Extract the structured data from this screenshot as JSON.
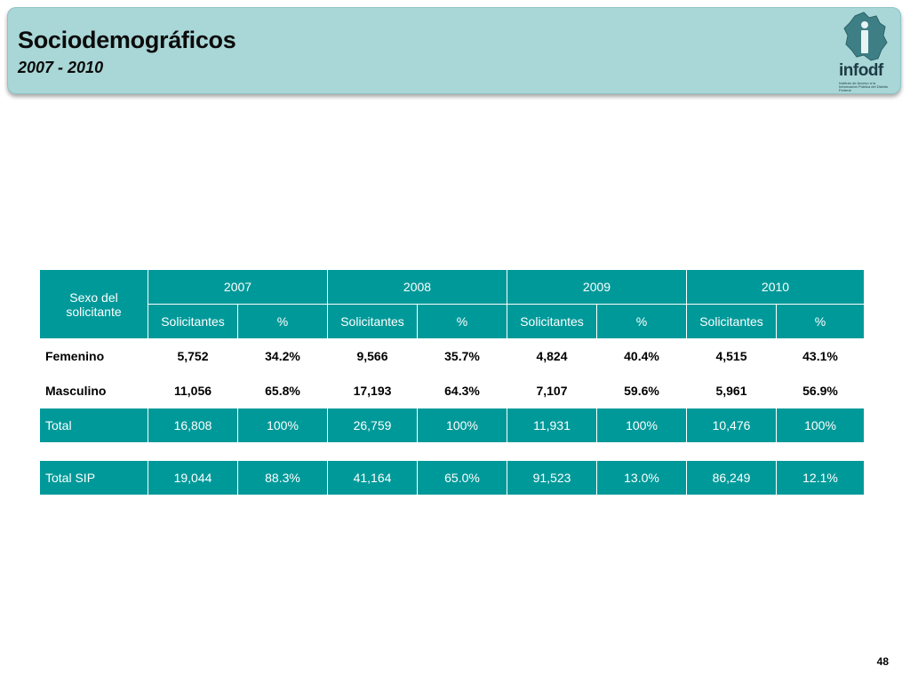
{
  "header": {
    "title": "Sociodemográficos",
    "subtitle": "2007 - 2010",
    "logo_text": "infodf",
    "logo_sub": "Instituto de Acceso a la Información Pública del Distrito Federal"
  },
  "table": {
    "corner_label": "Sexo del solicitante",
    "years": [
      "2007",
      "2008",
      "2009",
      "2010"
    ],
    "subheaders": [
      "Solicitantes",
      "%"
    ],
    "rows": [
      {
        "label": "Femenino",
        "cells": [
          "5,752",
          "34.2%",
          "9,566",
          "35.7%",
          "4,824",
          "40.4%",
          "4,515",
          "43.1%"
        ]
      },
      {
        "label": "Masculino",
        "cells": [
          "11,056",
          "65.8%",
          "17,193",
          "64.3%",
          "7,107",
          "59.6%",
          "5,961",
          "56.9%"
        ]
      },
      {
        "label": "Total",
        "cells": [
          "16,808",
          "100%",
          "26,759",
          "100%",
          "11,931",
          "100%",
          "10,476",
          "100%"
        ]
      }
    ]
  },
  "sip": {
    "label": "Total SIP",
    "cells": [
      "19,044",
      "88.3%",
      "41,164",
      "65.0%",
      "91,523",
      "13.0%",
      "86,249",
      "12.1%"
    ]
  },
  "page_number": "48",
  "colors": {
    "header_bg": "#a9d6d6",
    "table_teal": "#009999"
  }
}
